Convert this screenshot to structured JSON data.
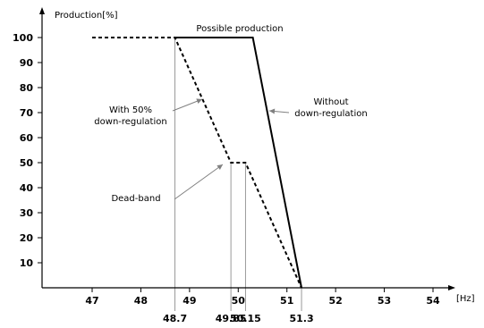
{
  "chart_data": {
    "type": "line",
    "ylabel": "Production[%]",
    "xlabel": "[Hz]",
    "xlim": [
      46,
      55.2
    ],
    "ylim": [
      0,
      107
    ],
    "grid": false,
    "x_ticks": [
      "47",
      "48",
      "49",
      "50",
      "51",
      "52",
      "53",
      "54"
    ],
    "y_ticks": [
      "10",
      "20",
      "30",
      "40",
      "50",
      "60",
      "70",
      "80",
      "90",
      "100"
    ],
    "marked_x": [
      "48.7",
      "49.85",
      "50.15",
      "51.3"
    ],
    "series": [
      {
        "style": "solid",
        "x": [
          48.7,
          50.3,
          51.3
        ],
        "y": [
          100,
          100,
          0
        ]
      },
      {
        "style": "dashed",
        "x": [
          47.0,
          48.7,
          49.85,
          50.15,
          51.3
        ],
        "y": [
          100,
          100,
          50,
          50,
          0
        ]
      }
    ],
    "annotations": [
      {
        "lines": [
          "Possible production"
        ]
      },
      {
        "lines": [
          "Without",
          "down-regulation"
        ]
      },
      {
        "lines": [
          "With 50%",
          "down-regulation"
        ]
      },
      {
        "lines": [
          "Dead-band"
        ]
      }
    ]
  }
}
